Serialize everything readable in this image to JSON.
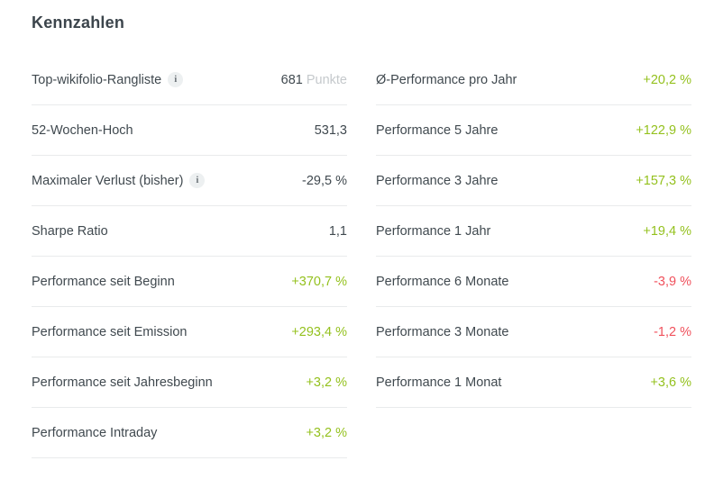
{
  "title": "Kennzahlen",
  "icons": {
    "info": "i"
  },
  "colors": {
    "positive": "#94c11e",
    "negative": "#f0515c",
    "neutral": "#40494f",
    "unit": "#c5c9cc",
    "divider": "#e9ebec",
    "label": "#40494f",
    "title": "#3c454c"
  },
  "columns": {
    "left": [
      {
        "label": "Top-wikifolio-Rangliste",
        "info": true,
        "value": "681",
        "unit": "Punkte",
        "tone": "neutral"
      },
      {
        "label": "52-Wochen-Hoch",
        "info": false,
        "value": "531,3",
        "unit": "",
        "tone": "neutral"
      },
      {
        "label": "Maximaler Verlust (bisher)",
        "info": true,
        "value": "-29,5 %",
        "unit": "",
        "tone": "neutral"
      },
      {
        "label": "Sharpe Ratio",
        "info": false,
        "value": "1,1",
        "unit": "",
        "tone": "neutral"
      },
      {
        "label": "Performance seit Beginn",
        "info": false,
        "value": "+370,7 %",
        "unit": "",
        "tone": "positive"
      },
      {
        "label": "Performance seit Emission",
        "info": false,
        "value": "+293,4 %",
        "unit": "",
        "tone": "positive"
      },
      {
        "label": "Performance seit Jahresbeginn",
        "info": false,
        "value": "+3,2 %",
        "unit": "",
        "tone": "positive"
      },
      {
        "label": "Performance Intraday",
        "info": false,
        "value": "+3,2 %",
        "unit": "",
        "tone": "positive"
      }
    ],
    "right": [
      {
        "label": "Ø-Performance pro Jahr",
        "info": false,
        "value": "+20,2 %",
        "unit": "",
        "tone": "positive"
      },
      {
        "label": "Performance 5 Jahre",
        "info": false,
        "value": "+122,9 %",
        "unit": "",
        "tone": "positive"
      },
      {
        "label": "Performance 3 Jahre",
        "info": false,
        "value": "+157,3 %",
        "unit": "",
        "tone": "positive"
      },
      {
        "label": "Performance 1 Jahr",
        "info": false,
        "value": "+19,4 %",
        "unit": "",
        "tone": "positive"
      },
      {
        "label": "Performance 6 Monate",
        "info": false,
        "value": "-3,9 %",
        "unit": "",
        "tone": "negative"
      },
      {
        "label": "Performance 3 Monate",
        "info": false,
        "value": "-1,2 %",
        "unit": "",
        "tone": "negative"
      },
      {
        "label": "Performance 1 Monat",
        "info": false,
        "value": "+3,6 %",
        "unit": "",
        "tone": "positive"
      }
    ]
  }
}
